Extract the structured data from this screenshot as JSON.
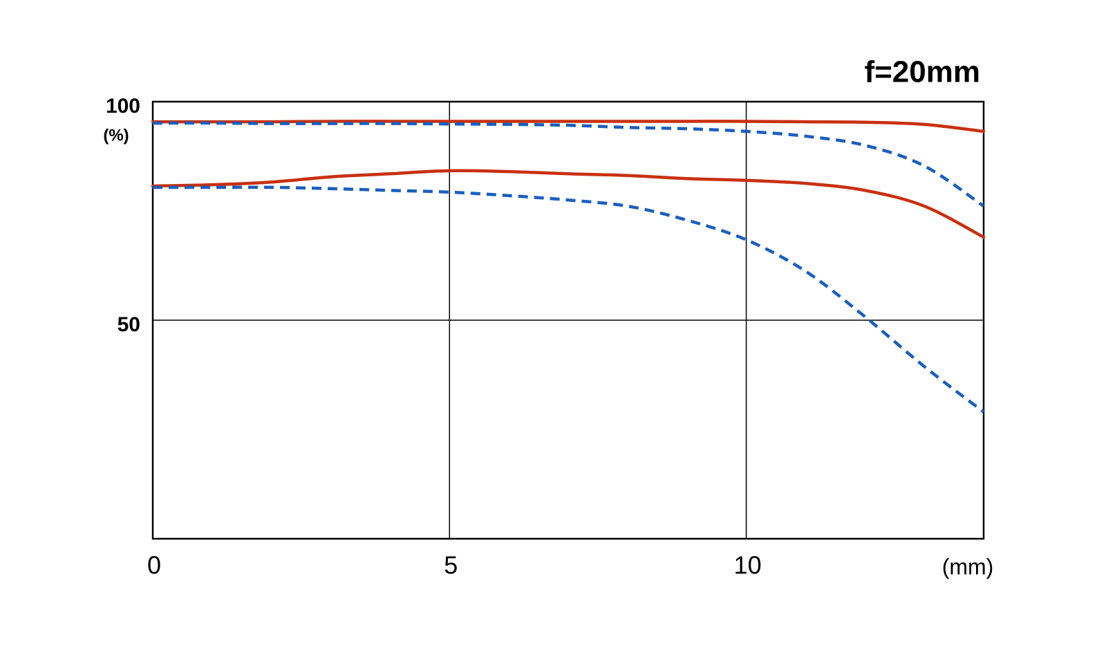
{
  "chart_data": {
    "type": "line",
    "title": "f=20mm",
    "xlabel": "(mm)",
    "ylabel": "(%)",
    "x": [
      0,
      1,
      2,
      3,
      4,
      5,
      6,
      7,
      8,
      9,
      10,
      11,
      12,
      13,
      14
    ],
    "series": [
      {
        "color": "#c8300f",
        "dash": false,
        "values": [
          95.4,
          95.4,
          95.4,
          95.5,
          95.5,
          95.5,
          95.5,
          95.5,
          95.5,
          95.5,
          95.5,
          95.4,
          95.3,
          94.8,
          93.2
        ]
      },
      {
        "color": "#1a5fbf",
        "dash": true,
        "values": [
          95.1,
          95.1,
          95.0,
          95.0,
          95.0,
          94.9,
          94.8,
          94.6,
          94.1,
          93.8,
          93.2,
          92.1,
          90.0,
          85.3,
          76.1
        ]
      },
      {
        "color": "#c8300f",
        "dash": false,
        "values": [
          80.7,
          81.0,
          81.6,
          82.8,
          83.5,
          84.2,
          84.0,
          83.5,
          83.1,
          82.4,
          82.0,
          81.3,
          79.7,
          76.1,
          69.0
        ]
      },
      {
        "color": "#1a5fbf",
        "dash": true,
        "values": [
          80.4,
          80.4,
          80.4,
          80.1,
          79.7,
          79.3,
          78.5,
          77.5,
          76.1,
          72.9,
          68.4,
          61.2,
          50.8,
          39.4,
          29.0
        ]
      }
    ],
    "xlim": [
      0,
      14
    ],
    "xticks": [
      0,
      5,
      10
    ],
    "ylim": [
      0,
      100
    ],
    "yticks": [
      50,
      100
    ],
    "grid": true
  }
}
